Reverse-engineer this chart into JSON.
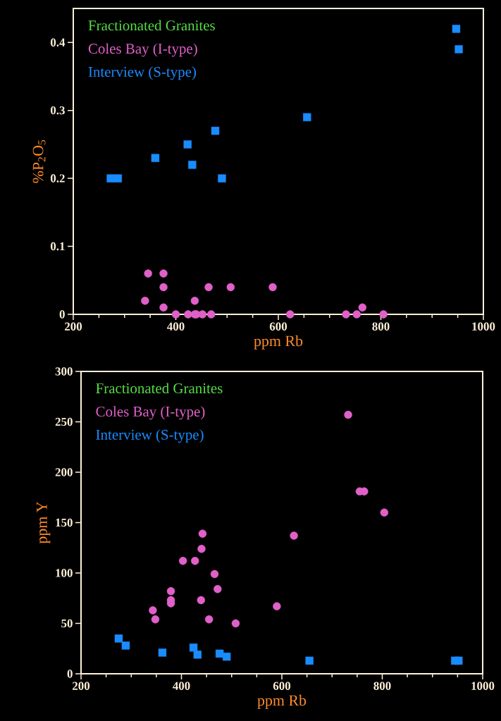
{
  "chart_data": [
    {
      "type": "scatter",
      "xlabel": "ppm Rb",
      "ylabel": "%P$_{2}$O$_{5}$",
      "xlim": [
        200,
        1000
      ],
      "ylim": [
        0,
        0.45
      ],
      "xticks": [
        200,
        400,
        600,
        800,
        1000
      ],
      "yticks": [
        0,
        0.1,
        0.2,
        0.3,
        0.4
      ],
      "legend": "top left",
      "series": [
        {
          "name": "Fractionated Granites",
          "color": "#55dd44",
          "marker": "none"
        },
        {
          "name": "Coles Bay (I-type)",
          "color": "#e060c8",
          "marker": "circle",
          "x": [
            346,
            376,
            376,
            464,
            507,
            589,
            340,
            437,
            376,
            764,
            400,
            424,
            437,
            440,
            452,
            469,
            623,
            732,
            753,
            805
          ],
          "values": [
            0.06,
            0.06,
            0.04,
            0.04,
            0.04,
            0.04,
            0.02,
            0.02,
            0.01,
            0.01,
            0,
            0,
            0,
            0,
            0,
            0,
            0,
            0,
            0,
            0
          ]
        },
        {
          "name": "Interview (S-type)",
          "color": "#1a8cff",
          "marker": "square",
          "x": [
            273,
            287,
            360,
            423,
            432,
            477,
            490,
            656,
            947,
            952
          ],
          "values": [
            0.2,
            0.2,
            0.23,
            0.25,
            0.22,
            0.27,
            0.2,
            0.29,
            0.42,
            0.39
          ]
        }
      ]
    },
    {
      "type": "scatter",
      "xlabel": "ppm Rb",
      "ylabel": "ppm Y",
      "xlim": [
        200,
        1000
      ],
      "ylim": [
        0,
        300
      ],
      "xticks": [
        200,
        400,
        600,
        800,
        1000
      ],
      "yticks": [
        0,
        50,
        100,
        150,
        200,
        250,
        300
      ],
      "legend": "top left",
      "series": [
        {
          "name": "Fractionated Granites",
          "color": "#55dd44",
          "marker": "none"
        },
        {
          "name": "Coles Bay (I-type)",
          "color": "#e060c8",
          "marker": "circle",
          "x": [
            442,
            624,
            440,
            403,
            427,
            466,
            472,
            379,
            379,
            379,
            439,
            590,
            343,
            348,
            455,
            508,
            732,
            755,
            764,
            804
          ],
          "values": [
            139,
            137,
            124,
            112,
            112,
            99,
            84,
            82,
            73,
            70,
            73,
            67,
            63,
            54,
            54,
            50,
            257,
            181,
            181,
            160
          ]
        },
        {
          "name": "Interview (S-type)",
          "color": "#1a8cff",
          "marker": "square",
          "x": [
            275,
            289,
            362,
            424,
            432,
            476,
            490,
            655,
            945,
            952
          ],
          "values": [
            35,
            28,
            21,
            26,
            19,
            20,
            17,
            13,
            13,
            13
          ]
        }
      ]
    }
  ]
}
